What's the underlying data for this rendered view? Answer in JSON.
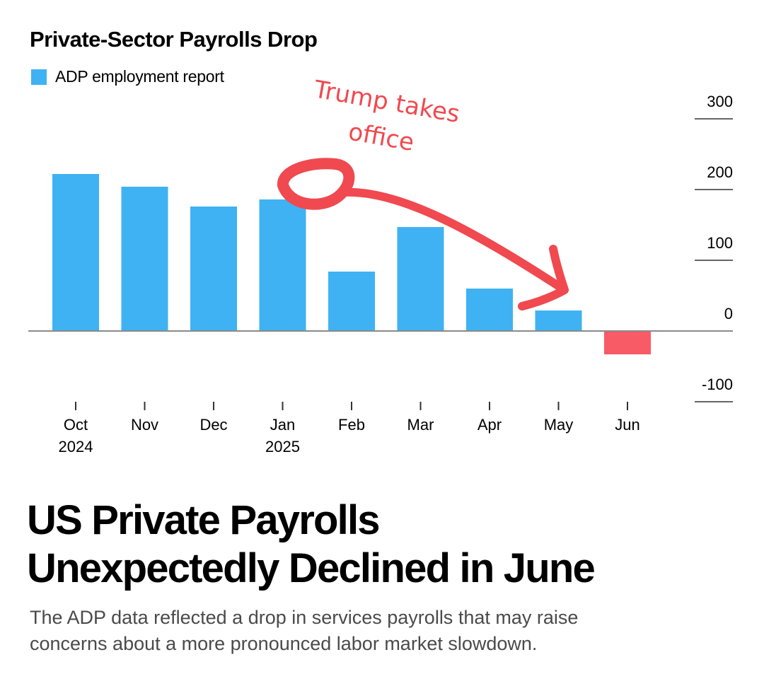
{
  "chart_title": "Private-Sector Payrolls Drop",
  "legend": {
    "label": "ADP employment report",
    "color": "#3fb2f3"
  },
  "annotation": {
    "line1": "Trump takes",
    "line2": "office",
    "color": "#f0494f"
  },
  "headline": {
    "line1": "US Private Payrolls",
    "line2": "Unexpectedly Declined in June"
  },
  "subtitle": {
    "line1": "The ADP data reflected a drop in services payrolls that may raise",
    "line2": "concerns about a more pronounced labor market slowdown."
  },
  "chart_data": {
    "type": "bar",
    "categories": [
      "Oct\n2024",
      "Nov",
      "Dec",
      "Jan\n2025",
      "Feb",
      "Mar",
      "Apr",
      "May",
      "Jun"
    ],
    "values": [
      222,
      204,
      176,
      186,
      84,
      147,
      60,
      29,
      -33
    ],
    "series": [
      {
        "name": "ADP employment report",
        "values": [
          222,
          204,
          176,
          186,
          84,
          147,
          60,
          29,
          -33
        ]
      }
    ],
    "ylim": [
      -100,
      300
    ],
    "yticks": [
      300,
      200,
      100,
      0,
      -100
    ],
    "y_axis_position": "right",
    "positive_color": "#3fb2f3",
    "negative_color": "#f85a66",
    "title": "Private-Sector Payrolls Drop",
    "xlabel": "",
    "ylabel": ""
  }
}
